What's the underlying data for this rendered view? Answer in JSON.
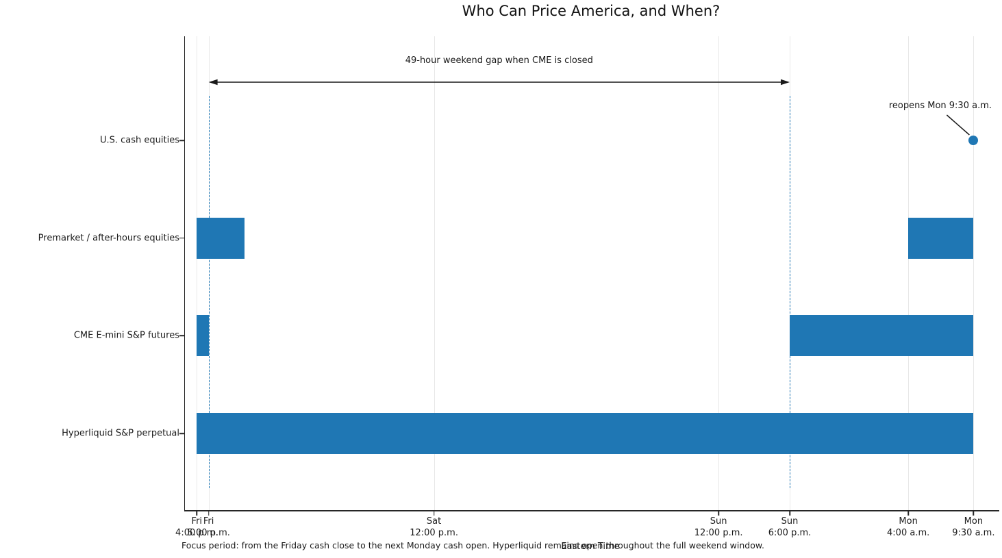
{
  "chart_data": {
    "type": "bar",
    "subtype": "horizontal-interval-timeline",
    "title": "Who Can Price America, and When?",
    "xlabel": "Eastern Time",
    "caption": "Focus period: from the Friday cash close to the next Monday cash open. Hyperliquid remains open throughout the full weekend window.",
    "x_unit": "hours after Friday 4:00 p.m. ET",
    "xlim_hours": [
      -1,
      67.5
    ],
    "grid": "vertical",
    "legend_position": "none",
    "x_ticks": [
      {
        "day": "Fri",
        "time": "4:00 p.m.",
        "hours": 0
      },
      {
        "day": "Fri",
        "time": "5:00 p.m.",
        "hours": 1
      },
      {
        "day": "Sat",
        "time": "12:00 p.m.",
        "hours": 20
      },
      {
        "day": "Sun",
        "time": "12:00 p.m.",
        "hours": 44
      },
      {
        "day": "Sun",
        "time": "6:00 p.m.",
        "hours": 50
      },
      {
        "day": "Mon",
        "time": "4:00 a.m.",
        "hours": 60
      },
      {
        "day": "Mon",
        "time": "9:30 a.m.",
        "hours": 65.5
      }
    ],
    "rows": [
      {
        "label": "U.S. cash equities",
        "intervals": [],
        "marker": {
          "x_hours": 65.5
        }
      },
      {
        "label": "Premarket / after-hours equities",
        "intervals": [
          [
            0,
            4
          ],
          [
            60,
            65.5
          ]
        ]
      },
      {
        "label": "CME E-mini S&P futures",
        "intervals": [
          [
            0,
            1
          ],
          [
            50,
            65.5
          ]
        ]
      },
      {
        "label": "Hyperliquid S&P perpetual",
        "intervals": [
          [
            0,
            65.5
          ]
        ]
      }
    ],
    "dashed_guides_hours": [
      1,
      50
    ],
    "gap_annotation": {
      "label": "49-hour weekend gap when CME is closed",
      "from_hours": 1,
      "to_hours": 50
    },
    "reopen_annotation": {
      "label": "reopens Mon 9:30 a.m.",
      "target_hours": 65.5,
      "target_row": "U.S. cash equities"
    },
    "colors": {
      "bar": "#1f77b4",
      "marker_dot": "#1f77b4",
      "dashed_guide": "#1f77b4",
      "gridline": "#e8e8e8",
      "axis": "#262626",
      "text": "#1a1a1a"
    }
  }
}
